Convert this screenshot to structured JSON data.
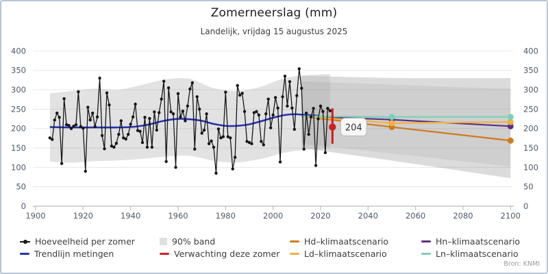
{
  "header": {
    "title": "Zomerneerslag (mm)",
    "subtitle": "Landelijk, vrijdag 15 augustus 2025"
  },
  "source": "Bron: KNMI",
  "colors": {
    "measurement": "#161616",
    "trend": "#2433b0",
    "band": "#e2e2e2",
    "forecast": "#cc2222",
    "hd": "#cf7a1d",
    "ld": "#f0b23e",
    "hn": "#5c2e85",
    "ln": "#79d0b8",
    "axis_text": "#4d5866",
    "grid": "rgba(120,120,120,0.18)",
    "frame_border": "#b7c6d5"
  },
  "legend": {
    "items": [
      {
        "label": "Hoeveelheid per zomer",
        "type": "dotline",
        "color": "#141414",
        "col": 0,
        "row": 0
      },
      {
        "label": "Trendlijn metingen",
        "type": "line",
        "color": "#2433b0",
        "col": 0,
        "row": 1
      },
      {
        "label": "90% band",
        "type": "square",
        "color": "#e0e0e0",
        "col": 1,
        "row": 0
      },
      {
        "label": "Verwachting deze zomer",
        "type": "line",
        "color": "#cc2222",
        "col": 1,
        "row": 1
      },
      {
        "label": "Hd–klimaatscenario",
        "type": "line",
        "color": "#cf7a1d",
        "col": 2,
        "row": 0
      },
      {
        "label": "Ld–klimaatscenario",
        "type": "line",
        "color": "#f0b23e",
        "col": 2,
        "row": 1
      },
      {
        "label": "Hn–klimaatscenario",
        "type": "line",
        "color": "#5c2e85",
        "col": 3,
        "row": 0
      },
      {
        "label": "Ln–klimaatscenario",
        "type": "line",
        "color": "#79d0b8",
        "col": 3,
        "row": 1
      }
    ]
  },
  "chart_data": {
    "type": "line",
    "title": "Zomerneerslag (mm)",
    "subtitle": "Landelijk, vrijdag 15 augustus 2025",
    "xlabel": "",
    "ylabel": "mm",
    "x_axis": {
      "range": [
        1900,
        2100
      ],
      "ticks": [
        1900,
        1920,
        1940,
        1960,
        1980,
        2000,
        2020,
        2040,
        2060,
        2080,
        2100
      ]
    },
    "y_axis": {
      "range": [
        0,
        400
      ],
      "ticks": [
        0,
        50,
        100,
        150,
        200,
        250,
        300,
        350,
        400
      ],
      "mirrored_right": true
    },
    "grid": true,
    "legend_position": "bottom",
    "measurements": {
      "name": "Hoeveelheid per zomer",
      "start_year": 1906,
      "end_year": 2024,
      "values": [
        176,
        172,
        222,
        240,
        229,
        110,
        277,
        210,
        208,
        200,
        206,
        210,
        295,
        205,
        201,
        90,
        255,
        222,
        240,
        205,
        230,
        330,
        182,
        148,
        292,
        261,
        155,
        152,
        162,
        185,
        220,
        176,
        173,
        185,
        211,
        230,
        263,
        195,
        193,
        164,
        229,
        152,
        226,
        152,
        243,
        196,
        241,
        276,
        322,
        115,
        305,
        243,
        238,
        100,
        290,
        230,
        245,
        220,
        258,
        302,
        318,
        147,
        282,
        250,
        188,
        196,
        238,
        161,
        168,
        152,
        85,
        199,
        176,
        179,
        294,
        179,
        176,
        96,
        126,
        311,
        286,
        291,
        244,
        167,
        164,
        161,
        241,
        244,
        235,
        167,
        158,
        238,
        276,
        202,
        235,
        280,
        253,
        114,
        282,
        335,
        258,
        321,
        253,
        198,
        285,
        354,
        304,
        147,
        240,
        185,
        230,
        252,
        105,
        225,
        258,
        244,
        138,
        252,
        246
      ]
    },
    "trend": {
      "name": "Trendlijn metingen",
      "points": [
        [
          1906,
          204
        ],
        [
          1915,
          203
        ],
        [
          1925,
          203
        ],
        [
          1935,
          203
        ],
        [
          1942,
          205
        ],
        [
          1948,
          211
        ],
        [
          1954,
          220
        ],
        [
          1960,
          225
        ],
        [
          1965,
          224
        ],
        [
          1970,
          220
        ],
        [
          1975,
          212
        ],
        [
          1980,
          207
        ],
        [
          1985,
          207
        ],
        [
          1990,
          211
        ],
        [
          1995,
          219
        ],
        [
          2000,
          228
        ],
        [
          2005,
          235
        ],
        [
          2009,
          237
        ],
        [
          2014,
          235
        ],
        [
          2019,
          233
        ]
      ]
    },
    "band_90pct": {
      "name": "90% band",
      "points": [
        [
          1906,
          115,
          290
        ],
        [
          1915,
          112,
          297
        ],
        [
          1925,
          116,
          303
        ],
        [
          1935,
          118,
          300
        ],
        [
          1945,
          122,
          313
        ],
        [
          1955,
          128,
          327
        ],
        [
          1965,
          130,
          328
        ],
        [
          1975,
          117,
          304
        ],
        [
          1985,
          113,
          297
        ],
        [
          1995,
          122,
          308
        ],
        [
          2005,
          138,
          330
        ],
        [
          2015,
          146,
          338
        ],
        [
          2024,
          148,
          340
        ]
      ]
    },
    "scenario_bands": [
      {
        "points": [
          [
            2012,
            150,
            336
          ],
          [
            2056,
            112,
            330
          ],
          [
            2100,
            72,
            330
          ]
        ],
        "fill": "rgba(190,190,190,0.55)"
      },
      {
        "points": [
          [
            2012,
            160,
            322
          ],
          [
            2056,
            132,
            312
          ],
          [
            2100,
            102,
            302
          ]
        ],
        "fill": "rgba(0,0,0,0.05)"
      }
    ],
    "scenarios": [
      {
        "name": "Hn–klimaatscenario",
        "color": "#5c2e85",
        "points": [
          [
            2012,
            232
          ],
          [
            2050,
            223
          ],
          [
            2100,
            206
          ]
        ],
        "markers": [
          2050,
          2100
        ]
      },
      {
        "name": "Hd–klimaatscenario",
        "color": "#cf7a1d",
        "points": [
          [
            2012,
            232
          ],
          [
            2050,
            204
          ],
          [
            2100,
            169
          ]
        ],
        "markers": [
          2050,
          2100
        ]
      },
      {
        "name": "Ld–klimaatscenario",
        "color": "#f0b23e",
        "points": [
          [
            2012,
            232
          ],
          [
            2050,
            214
          ],
          [
            2100,
            217
          ]
        ],
        "markers": [
          2050,
          2100
        ]
      },
      {
        "name": "Ln–klimaatscenario",
        "color": "#79d0b8",
        "points": [
          [
            2012,
            232
          ],
          [
            2050,
            230
          ],
          [
            2100,
            230
          ]
        ],
        "markers": [
          2050,
          2100
        ]
      }
    ],
    "forecast": {
      "name": "Verwachting deze zomer",
      "year": 2025,
      "value": 204,
      "low": 161,
      "high": 252,
      "label": "204"
    }
  }
}
